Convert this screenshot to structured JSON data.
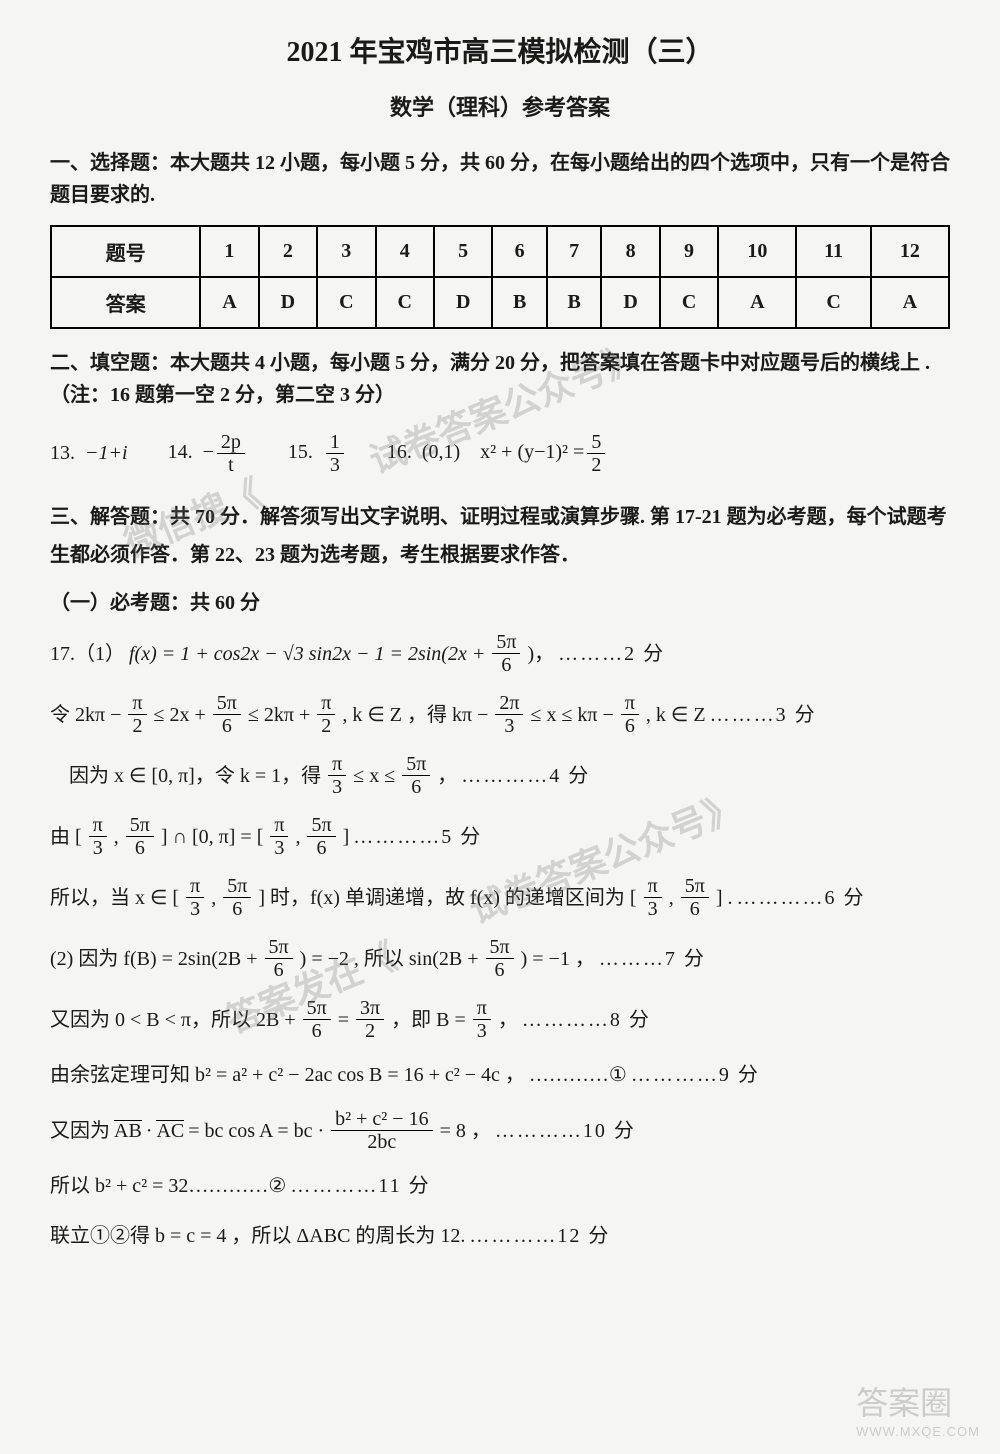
{
  "title": "2021 年宝鸡市高三模拟检测（三）",
  "subtitle": "数学（理科）参考答案",
  "section1_header": "一、选择题：本大题共 12 小题，每小题 5 分，共 60 分，在每小题给出的四个选项中，只有一个是符合题目要求的.",
  "table": {
    "row_label_q": "题号",
    "row_label_a": "答案",
    "cols": [
      "1",
      "2",
      "3",
      "4",
      "5",
      "6",
      "7",
      "8",
      "9",
      "10",
      "11",
      "12"
    ],
    "answers": [
      "A",
      "D",
      "C",
      "C",
      "D",
      "B",
      "B",
      "D",
      "C",
      "A",
      "C",
      "A"
    ]
  },
  "section2_header": "二、填空题：本大题共 4 小题，每小题 5 分，满分 20 分，把答案填在答题卡中对应题号后的横线上 .（注：16 题第一空 2 分，第二空 3 分）",
  "q13_label": "13.",
  "q13_ans": "−1+i",
  "q14_label": "14.",
  "q14_num": "2p",
  "q14_den": "t",
  "q15_label": "15.",
  "q15_num": "1",
  "q15_den": "3",
  "q16_label": "16.",
  "q16_a": "(0,1)",
  "q16_b_left": "x² + (y−1)² =",
  "q16_b_num": "5",
  "q16_b_den": "2",
  "section3_header": "三、解答题：共 70 分．解答须写出文字说明、证明过程或演算步骤. 第 17-21 题为必考题，每个试题考生都必须作答．第 22、23 题为选考题，考生根据要求作答．",
  "section3_sub": "（一）必考题：共 60 分",
  "q17": {
    "line1a": "17.（1）",
    "line1b": "f(x) = 1 + cos2x − √3 sin2x − 1 = 2sin(2x +",
    "line1_num": "5π",
    "line1_den": "6",
    "line1c": ")，",
    "line1_pts": "………2 分",
    "line2a": "令 2kπ −",
    "line2_f1n": "π",
    "line2_f1d": "2",
    "line2b": "≤ 2x +",
    "line2_f2n": "5π",
    "line2_f2d": "6",
    "line2c": "≤ 2kπ +",
    "line2_f3n": "π",
    "line2_f3d": "2",
    "line2d": ", k ∈ Z ，得 kπ −",
    "line2_f4n": "2π",
    "line2_f4d": "3",
    "line2e": "≤ x ≤ kπ −",
    "line2_f5n": "π",
    "line2_f5d": "6",
    "line2f": ", k ∈ Z",
    "line2_pts": "………3 分",
    "line3a": "因为 x ∈ [0, π]，令 k = 1，得",
    "line3_f1n": "π",
    "line3_f1d": "3",
    "line3b": "≤ x ≤",
    "line3_f2n": "5π",
    "line3_f2d": "6",
    "line3c": "，",
    "line3_pts": "…………4 分",
    "line4a": "由 [",
    "line4_f1n": "π",
    "line4_f1d": "3",
    "line4b": ",",
    "line4_f2n": "5π",
    "line4_f2d": "6",
    "line4c": "] ∩ [0, π] = [",
    "line4_f3n": "π",
    "line4_f3d": "3",
    "line4d": ",",
    "line4_f4n": "5π",
    "line4_f4d": "6",
    "line4e": "]",
    "line4_pts": "…………5 分",
    "line5a": "所以，当 x ∈ [",
    "line5_f1n": "π",
    "line5_f1d": "3",
    "line5b": ",",
    "line5_f2n": "5π",
    "line5_f2d": "6",
    "line5c": "] 时，f(x) 单调递增，故 f(x) 的递增区间为 [",
    "line5_f3n": "π",
    "line5_f3d": "3",
    "line5d": ",",
    "line5_f4n": "5π",
    "line5_f4d": "6",
    "line5e": "] .",
    "line5_pts": "…………6 分",
    "line6a": "(2) 因为 f(B) = 2sin(2B +",
    "line6_f1n": "5π",
    "line6_f1d": "6",
    "line6b": ") = −2 , 所以 sin(2B +",
    "line6_f2n": "5π",
    "line6_f2d": "6",
    "line6c": ") = −1 ，",
    "line6_pts": "………7 分",
    "line7a": "又因为 0 < B < π，所以 2B +",
    "line7_f1n": "5π",
    "line7_f1d": "6",
    "line7b": "=",
    "line7_f2n": "3π",
    "line7_f2d": "2",
    "line7c": "，即 B =",
    "line7_f3n": "π",
    "line7_f3d": "3",
    "line7d": "，",
    "line7_pts": "…………8 分",
    "line8a": "由余弦定理可知 b² = a² + c² − 2ac cos B = 16 + c² − 4c ，",
    "line8b": "…………①",
    "line8_pts": "…………9 分",
    "line9a": "又因为",
    "line9_vec1": "AB",
    "line9b": "·",
    "line9_vec2": "AC",
    "line9c": "= bc cos A = bc ·",
    "line9_num": "b² + c² − 16",
    "line9_den": "2bc",
    "line9d": "= 8 ，",
    "line9_pts": "…………10 分",
    "line10a": "所以 b² + c² = 32…………②",
    "line10_pts": "…………11 分",
    "line11a": "联立①②得 b = c = 4 ，所以 ΔABC 的周长为 12.",
    "line11_pts": "…………12 分"
  },
  "watermarks": {
    "wm1": "试卷答案公众号》",
    "wm2": "微信搜《",
    "wm3": "试卷答案公众号》",
    "wm4": "答案发在《",
    "corner_big": "答案圈",
    "corner_sm": "WWW.MXQE.COM"
  },
  "colors": {
    "background": "#f5f5f3",
    "text": "#1a1a1a",
    "watermark": "rgba(120,120,120,0.28)"
  }
}
